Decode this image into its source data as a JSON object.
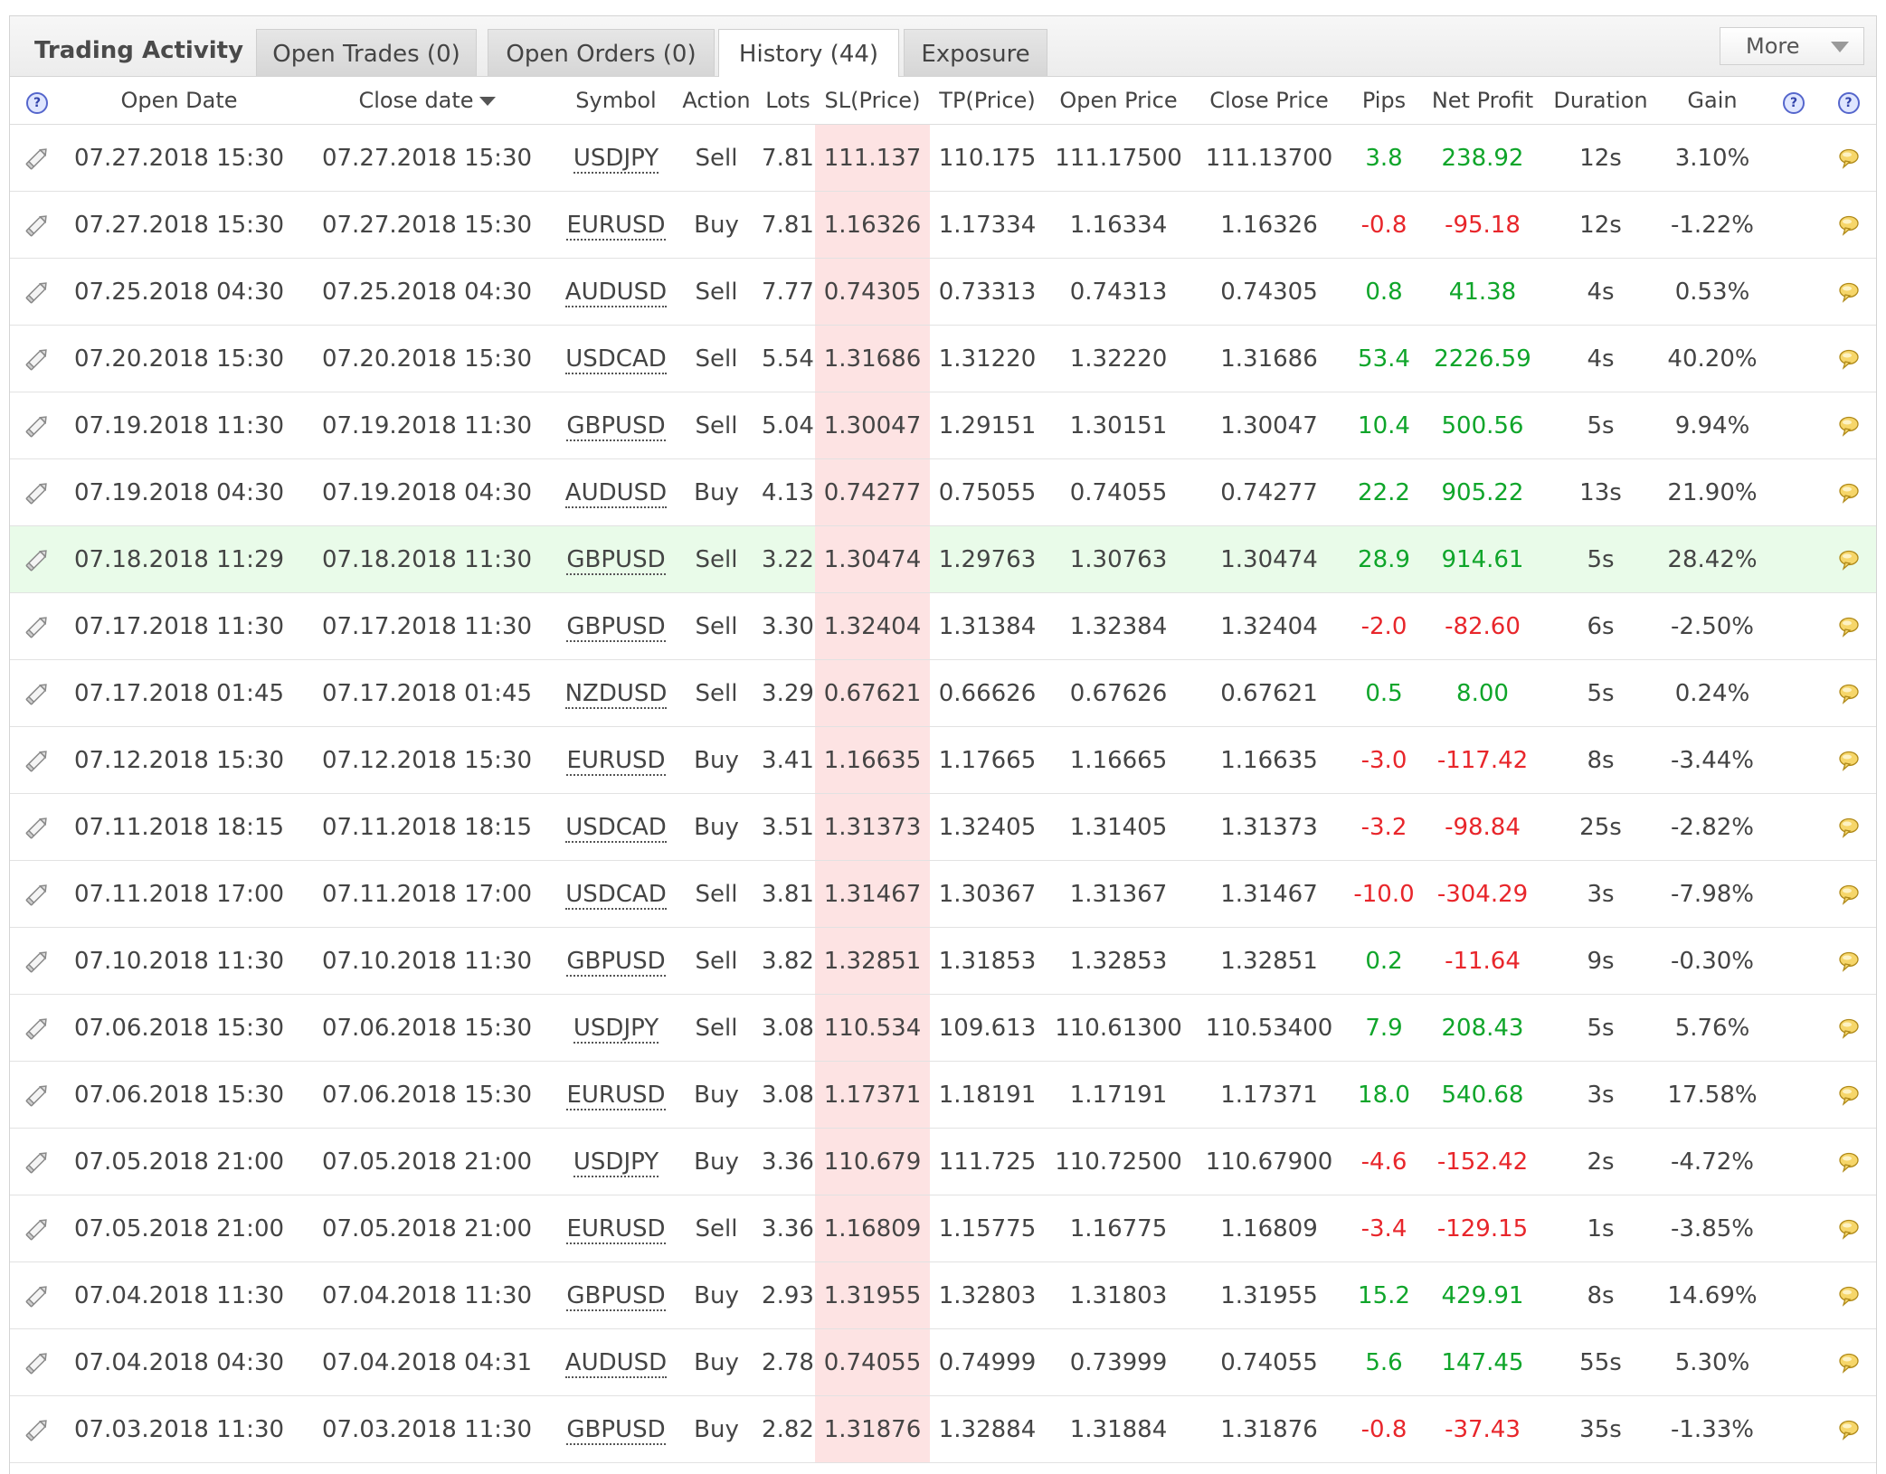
{
  "panel": {
    "title": "Trading Activity"
  },
  "tabs": [
    {
      "label": "Open Trades (0)"
    },
    {
      "label": "Open Orders (0)"
    },
    {
      "label": "History (44)"
    },
    {
      "label": "Exposure"
    }
  ],
  "more": {
    "label": "More"
  },
  "columns": {
    "open_date": "Open Date",
    "close_date": "Close date",
    "symbol": "Symbol",
    "action": "Action",
    "lots": "Lots",
    "sl": "SL(Price)",
    "tp": "TP(Price)",
    "open_price": "Open Price",
    "close_price": "Close Price",
    "pips": "Pips",
    "net_profit": "Net Profit",
    "duration": "Duration",
    "gain": "Gain"
  },
  "icons": {
    "help": "question-circle-icon",
    "edit": "pencil-icon",
    "comment": "speech-bubble-icon",
    "sort": "sort-desc-icon"
  },
  "colors": {
    "positive": "#0fa52a",
    "negative": "#e8262b",
    "sl_highlight": "#fde3e3",
    "row_highlight": "#e9fbe9"
  },
  "rows": [
    {
      "open_date": "07.27.2018 15:30",
      "close_date": "07.27.2018 15:30",
      "symbol": "USDJPY",
      "action": "Sell",
      "lots": "7.81",
      "sl": "111.137",
      "tp": "110.175",
      "open_price": "111.17500",
      "close_price": "111.13700",
      "pips": "3.8",
      "pips_sign": "pos",
      "net_profit": "238.92",
      "profit_sign": "pos",
      "duration": "12s",
      "gain": "3.10%"
    },
    {
      "open_date": "07.27.2018 15:30",
      "close_date": "07.27.2018 15:30",
      "symbol": "EURUSD",
      "action": "Buy",
      "lots": "7.81",
      "sl": "1.16326",
      "tp": "1.17334",
      "open_price": "1.16334",
      "close_price": "1.16326",
      "pips": "-0.8",
      "pips_sign": "neg",
      "net_profit": "-95.18",
      "profit_sign": "neg",
      "duration": "12s",
      "gain": "-1.22%"
    },
    {
      "open_date": "07.25.2018 04:30",
      "close_date": "07.25.2018 04:30",
      "symbol": "AUDUSD",
      "action": "Sell",
      "lots": "7.77",
      "sl": "0.74305",
      "tp": "0.73313",
      "open_price": "0.74313",
      "close_price": "0.74305",
      "pips": "0.8",
      "pips_sign": "pos",
      "net_profit": "41.38",
      "profit_sign": "pos",
      "duration": "4s",
      "gain": "0.53%"
    },
    {
      "open_date": "07.20.2018 15:30",
      "close_date": "07.20.2018 15:30",
      "symbol": "USDCAD",
      "action": "Sell",
      "lots": "5.54",
      "sl": "1.31686",
      "tp": "1.31220",
      "open_price": "1.32220",
      "close_price": "1.31686",
      "pips": "53.4",
      "pips_sign": "pos",
      "net_profit": "2226.59",
      "profit_sign": "pos",
      "duration": "4s",
      "gain": "40.20%"
    },
    {
      "open_date": "07.19.2018 11:30",
      "close_date": "07.19.2018 11:30",
      "symbol": "GBPUSD",
      "action": "Sell",
      "lots": "5.04",
      "sl": "1.30047",
      "tp": "1.29151",
      "open_price": "1.30151",
      "close_price": "1.30047",
      "pips": "10.4",
      "pips_sign": "pos",
      "net_profit": "500.56",
      "profit_sign": "pos",
      "duration": "5s",
      "gain": "9.94%"
    },
    {
      "open_date": "07.19.2018 04:30",
      "close_date": "07.19.2018 04:30",
      "symbol": "AUDUSD",
      "action": "Buy",
      "lots": "4.13",
      "sl": "0.74277",
      "tp": "0.75055",
      "open_price": "0.74055",
      "close_price": "0.74277",
      "pips": "22.2",
      "pips_sign": "pos",
      "net_profit": "905.22",
      "profit_sign": "pos",
      "duration": "13s",
      "gain": "21.90%"
    },
    {
      "open_date": "07.18.2018 11:29",
      "close_date": "07.18.2018 11:30",
      "symbol": "GBPUSD",
      "action": "Sell",
      "lots": "3.22",
      "sl": "1.30474",
      "tp": "1.29763",
      "open_price": "1.30763",
      "close_price": "1.30474",
      "pips": "28.9",
      "pips_sign": "pos",
      "net_profit": "914.61",
      "profit_sign": "pos",
      "duration": "5s",
      "gain": "28.42%",
      "highlight": true
    },
    {
      "open_date": "07.17.2018 11:30",
      "close_date": "07.17.2018 11:30",
      "symbol": "GBPUSD",
      "action": "Sell",
      "lots": "3.30",
      "sl": "1.32404",
      "tp": "1.31384",
      "open_price": "1.32384",
      "close_price": "1.32404",
      "pips": "-2.0",
      "pips_sign": "neg",
      "net_profit": "-82.60",
      "profit_sign": "neg",
      "duration": "6s",
      "gain": "-2.50%"
    },
    {
      "open_date": "07.17.2018 01:45",
      "close_date": "07.17.2018 01:45",
      "symbol": "NZDUSD",
      "action": "Sell",
      "lots": "3.29",
      "sl": "0.67621",
      "tp": "0.66626",
      "open_price": "0.67626",
      "close_price": "0.67621",
      "pips": "0.5",
      "pips_sign": "pos",
      "net_profit": "8.00",
      "profit_sign": "pos",
      "duration": "5s",
      "gain": "0.24%"
    },
    {
      "open_date": "07.12.2018 15:30",
      "close_date": "07.12.2018 15:30",
      "symbol": "EURUSD",
      "action": "Buy",
      "lots": "3.41",
      "sl": "1.16635",
      "tp": "1.17665",
      "open_price": "1.16665",
      "close_price": "1.16635",
      "pips": "-3.0",
      "pips_sign": "neg",
      "net_profit": "-117.42",
      "profit_sign": "neg",
      "duration": "8s",
      "gain": "-3.44%"
    },
    {
      "open_date": "07.11.2018 18:15",
      "close_date": "07.11.2018 18:15",
      "symbol": "USDCAD",
      "action": "Buy",
      "lots": "3.51",
      "sl": "1.31373",
      "tp": "1.32405",
      "open_price": "1.31405",
      "close_price": "1.31373",
      "pips": "-3.2",
      "pips_sign": "neg",
      "net_profit": "-98.84",
      "profit_sign": "neg",
      "duration": "25s",
      "gain": "-2.82%"
    },
    {
      "open_date": "07.11.2018 17:00",
      "close_date": "07.11.2018 17:00",
      "symbol": "USDCAD",
      "action": "Sell",
      "lots": "3.81",
      "sl": "1.31467",
      "tp": "1.30367",
      "open_price": "1.31367",
      "close_price": "1.31467",
      "pips": "-10.0",
      "pips_sign": "neg",
      "net_profit": "-304.29",
      "profit_sign": "neg",
      "duration": "3s",
      "gain": "-7.98%"
    },
    {
      "open_date": "07.10.2018 11:30",
      "close_date": "07.10.2018 11:30",
      "symbol": "GBPUSD",
      "action": "Sell",
      "lots": "3.82",
      "sl": "1.32851",
      "tp": "1.31853",
      "open_price": "1.32853",
      "close_price": "1.32851",
      "pips": "0.2",
      "pips_sign": "pos",
      "net_profit": "-11.64",
      "profit_sign": "neg",
      "duration": "9s",
      "gain": "-0.30%"
    },
    {
      "open_date": "07.06.2018 15:30",
      "close_date": "07.06.2018 15:30",
      "symbol": "USDJPY",
      "action": "Sell",
      "lots": "3.08",
      "sl": "110.534",
      "tp": "109.613",
      "open_price": "110.61300",
      "close_price": "110.53400",
      "pips": "7.9",
      "pips_sign": "pos",
      "net_profit": "208.43",
      "profit_sign": "pos",
      "duration": "5s",
      "gain": "5.76%"
    },
    {
      "open_date": "07.06.2018 15:30",
      "close_date": "07.06.2018 15:30",
      "symbol": "EURUSD",
      "action": "Buy",
      "lots": "3.08",
      "sl": "1.17371",
      "tp": "1.18191",
      "open_price": "1.17191",
      "close_price": "1.17371",
      "pips": "18.0",
      "pips_sign": "pos",
      "net_profit": "540.68",
      "profit_sign": "pos",
      "duration": "3s",
      "gain": "17.58%"
    },
    {
      "open_date": "07.05.2018 21:00",
      "close_date": "07.05.2018 21:00",
      "symbol": "USDJPY",
      "action": "Buy",
      "lots": "3.36",
      "sl": "110.679",
      "tp": "111.725",
      "open_price": "110.72500",
      "close_price": "110.67900",
      "pips": "-4.6",
      "pips_sign": "neg",
      "net_profit": "-152.42",
      "profit_sign": "neg",
      "duration": "2s",
      "gain": "-4.72%"
    },
    {
      "open_date": "07.05.2018 21:00",
      "close_date": "07.05.2018 21:00",
      "symbol": "EURUSD",
      "action": "Sell",
      "lots": "3.36",
      "sl": "1.16809",
      "tp": "1.15775",
      "open_price": "1.16775",
      "close_price": "1.16809",
      "pips": "-3.4",
      "pips_sign": "neg",
      "net_profit": "-129.15",
      "profit_sign": "neg",
      "duration": "1s",
      "gain": "-3.85%"
    },
    {
      "open_date": "07.04.2018 11:30",
      "close_date": "07.04.2018 11:30",
      "symbol": "GBPUSD",
      "action": "Buy",
      "lots": "2.93",
      "sl": "1.31955",
      "tp": "1.32803",
      "open_price": "1.31803",
      "close_price": "1.31955",
      "pips": "15.2",
      "pips_sign": "pos",
      "net_profit": "429.91",
      "profit_sign": "pos",
      "duration": "8s",
      "gain": "14.69%"
    },
    {
      "open_date": "07.04.2018 04:30",
      "close_date": "07.04.2018 04:31",
      "symbol": "AUDUSD",
      "action": "Buy",
      "lots": "2.78",
      "sl": "0.74055",
      "tp": "0.74999",
      "open_price": "0.73999",
      "close_price": "0.74055",
      "pips": "5.6",
      "pips_sign": "pos",
      "net_profit": "147.45",
      "profit_sign": "pos",
      "duration": "55s",
      "gain": "5.30%"
    },
    {
      "open_date": "07.03.2018 11:30",
      "close_date": "07.03.2018 11:30",
      "symbol": "GBPUSD",
      "action": "Buy",
      "lots": "2.82",
      "sl": "1.31876",
      "tp": "1.32884",
      "open_price": "1.31884",
      "close_price": "1.31876",
      "pips": "-0.8",
      "pips_sign": "neg",
      "net_profit": "-37.43",
      "profit_sign": "neg",
      "duration": "35s",
      "gain": "-1.33%"
    }
  ]
}
